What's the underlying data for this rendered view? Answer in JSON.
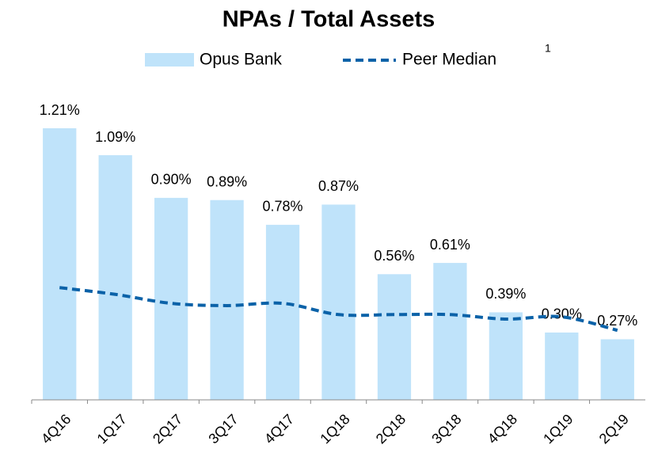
{
  "chart_data": {
    "type": "bar_line",
    "title": "NPAs / Total Assets",
    "categories": [
      "4Q16",
      "1Q17",
      "2Q17",
      "3Q17",
      "4Q17",
      "1Q18",
      "2Q18",
      "3Q18",
      "4Q18",
      "1Q19",
      "2Q19"
    ],
    "series": [
      {
        "name": "Opus Bank",
        "type": "bar",
        "color": "#bfe3fa",
        "values": [
          1.21,
          1.09,
          0.9,
          0.89,
          0.78,
          0.87,
          0.56,
          0.61,
          0.39,
          0.3,
          0.27
        ],
        "value_labels": [
          "1.21%",
          "1.09%",
          "0.90%",
          "0.89%",
          "0.78%",
          "0.87%",
          "0.56%",
          "0.61%",
          "0.39%",
          "0.30%",
          "0.27%"
        ]
      },
      {
        "name": "Peer Median",
        "footnote": "1",
        "type": "line",
        "color": "#0b62a8",
        "dashed": true,
        "values": [
          0.5,
          0.47,
          0.43,
          0.42,
          0.43,
          0.38,
          0.38,
          0.38,
          0.36,
          0.37,
          0.31
        ]
      }
    ]
  }
}
